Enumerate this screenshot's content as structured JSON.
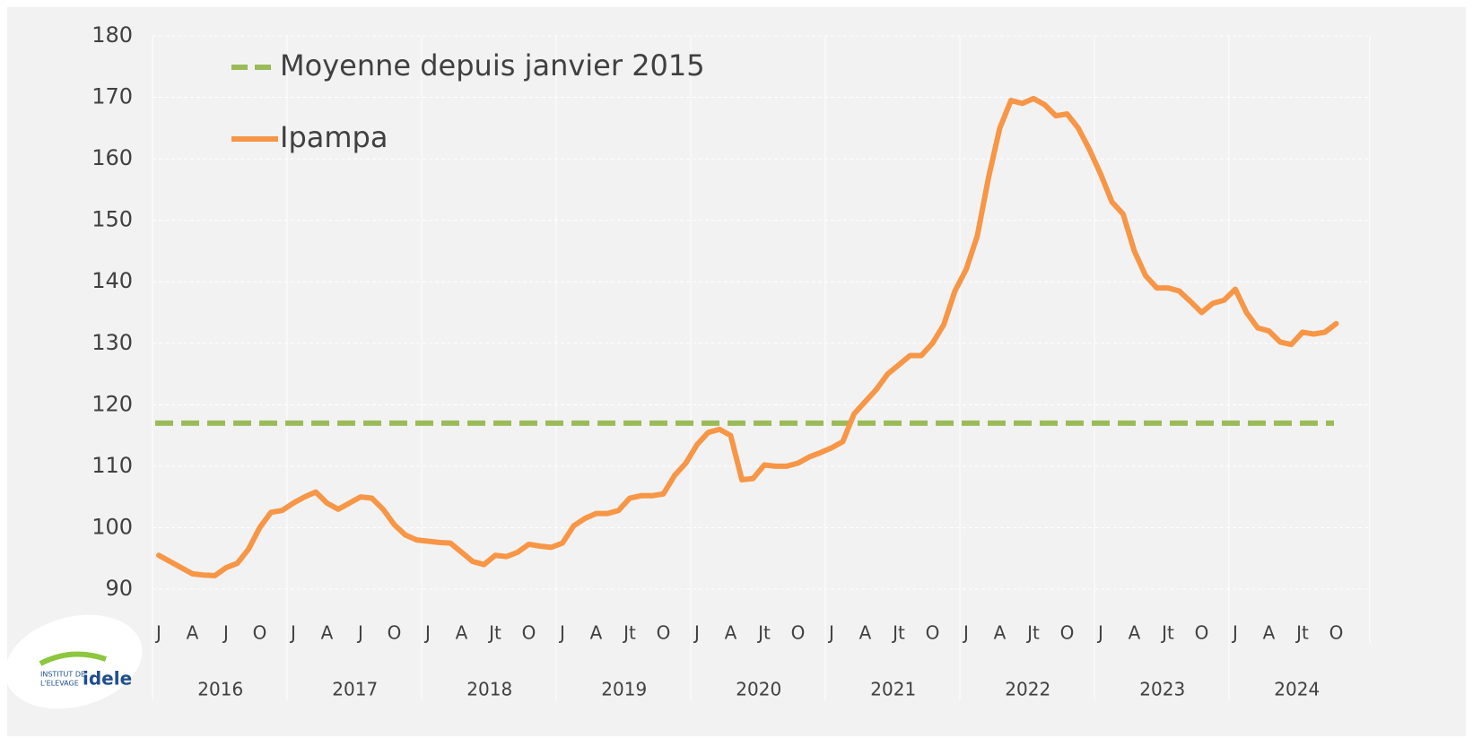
{
  "chart_data": {
    "type": "line",
    "categories": [
      "J",
      null,
      null,
      "A",
      null,
      null,
      "J",
      null,
      null,
      "O",
      null,
      null,
      "J",
      null,
      null,
      "A",
      null,
      null,
      "J",
      null,
      null,
      "O",
      null,
      null,
      "J",
      null,
      null,
      "A",
      null,
      null,
      "Jt",
      null,
      null,
      "O",
      null,
      null,
      "J",
      null,
      null,
      "A",
      null,
      null,
      "Jt",
      null,
      null,
      "O",
      null,
      null,
      "J",
      null,
      null,
      "A",
      null,
      null,
      "Jt",
      null,
      null,
      "O",
      null,
      null,
      "J",
      null,
      null,
      "A",
      null,
      null,
      "Jt",
      null,
      null,
      "O",
      null,
      null,
      "J",
      null,
      null,
      "A",
      null,
      null,
      "Jt",
      null,
      null,
      "O",
      null,
      null,
      "J",
      null,
      null,
      "A",
      null,
      null,
      "Jt",
      null,
      null,
      "O",
      null,
      null,
      "J",
      null,
      null,
      "A",
      null,
      null,
      "Jt",
      null,
      null,
      "O"
    ],
    "years": [
      "2016",
      "2017",
      "2018",
      "2019",
      "2020",
      "2021",
      "2022",
      "2023",
      "2024"
    ],
    "series": [
      {
        "name": "Moyenne depuis janvier 2015",
        "color": "#9bbb59",
        "dashed": true,
        "value": 117
      },
      {
        "name": "Ipampa",
        "color": "#f79646",
        "values": [
          95.5,
          94.5,
          93.5,
          92.5,
          92.3,
          92.2,
          93.5,
          94.2,
          96.5,
          100,
          102.5,
          102.8,
          104,
          105,
          105.8,
          104,
          103,
          104,
          105,
          104.8,
          103,
          100.5,
          98.8,
          98,
          97.8,
          97.6,
          97.5,
          96,
          94.5,
          94,
          95.5,
          95.3,
          96,
          97.3,
          97,
          96.8,
          97.5,
          100.3,
          101.5,
          102.3,
          102.3,
          102.8,
          104.8,
          105.2,
          105.2,
          105.5,
          108.5,
          110.5,
          113.5,
          115.5,
          116,
          115,
          107.8,
          108,
          110.2,
          110,
          110,
          110.5,
          111.5,
          112.2,
          113,
          114,
          118.5,
          120.5,
          122.5,
          125,
          126.5,
          128,
          128,
          130,
          133,
          138.5,
          142,
          147.5,
          157,
          165,
          169.5,
          169,
          169.8,
          168.8,
          167,
          167.3,
          165,
          161.5,
          157.5,
          153,
          151,
          145,
          141,
          139,
          139,
          138.5,
          136.8,
          135,
          136.5,
          137,
          138.8,
          135,
          132.5,
          132,
          130.2,
          129.8,
          131.8,
          131.5,
          131.8,
          133.2
        ]
      }
    ],
    "ylim": [
      90,
      180
    ],
    "yticks": [
      90,
      100,
      110,
      120,
      130,
      140,
      150,
      160,
      170,
      180
    ],
    "grid": true,
    "legend": "top-left"
  },
  "logo": {
    "line1": "INSTITUT DE",
    "line2": "L'ELEVAGE",
    "brand": "idele"
  }
}
